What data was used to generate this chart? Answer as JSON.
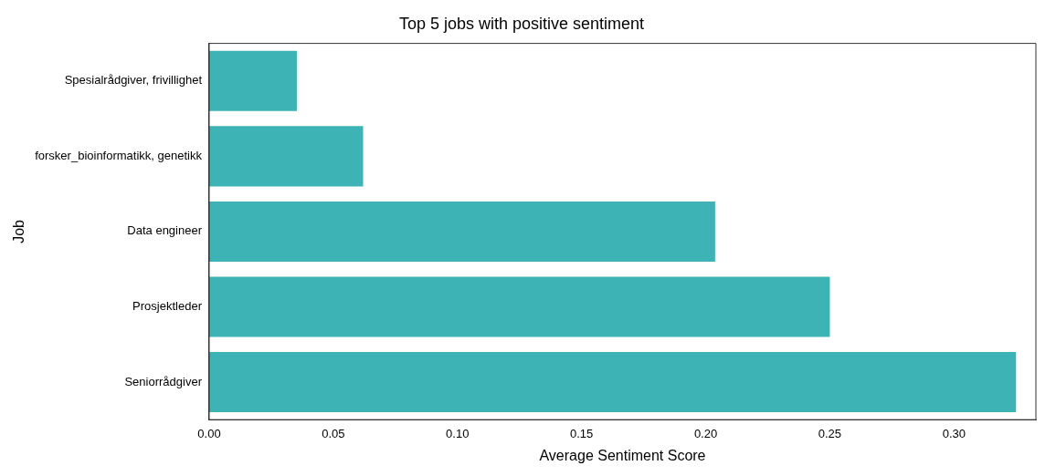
{
  "chart_data": {
    "type": "bar",
    "orientation": "horizontal",
    "title": "Top 5 jobs with positive sentiment",
    "xlabel": "Average Sentiment Score",
    "ylabel": "Job",
    "categories": [
      "Spesialrådgiver, frivillighet",
      "forsker_bioinformatikk, genetikk",
      "Data engineer",
      "Prosjektleder",
      "Seniorrådgiver"
    ],
    "values": [
      0.0353,
      0.062,
      0.2038,
      0.25,
      0.325
    ],
    "color": "#3db3b5",
    "xlim": [
      0,
      0.333
    ],
    "xticks": [
      {
        "value": 0,
        "label": "0.00"
      },
      {
        "value": 0.05,
        "label": "0.05"
      },
      {
        "value": 0.1,
        "label": "0.10"
      },
      {
        "value": 0.15,
        "label": "0.15"
      },
      {
        "value": 0.2,
        "label": "0.20"
      },
      {
        "value": 0.25,
        "label": "0.25"
      },
      {
        "value": 0.3,
        "label": "0.30"
      }
    ]
  }
}
